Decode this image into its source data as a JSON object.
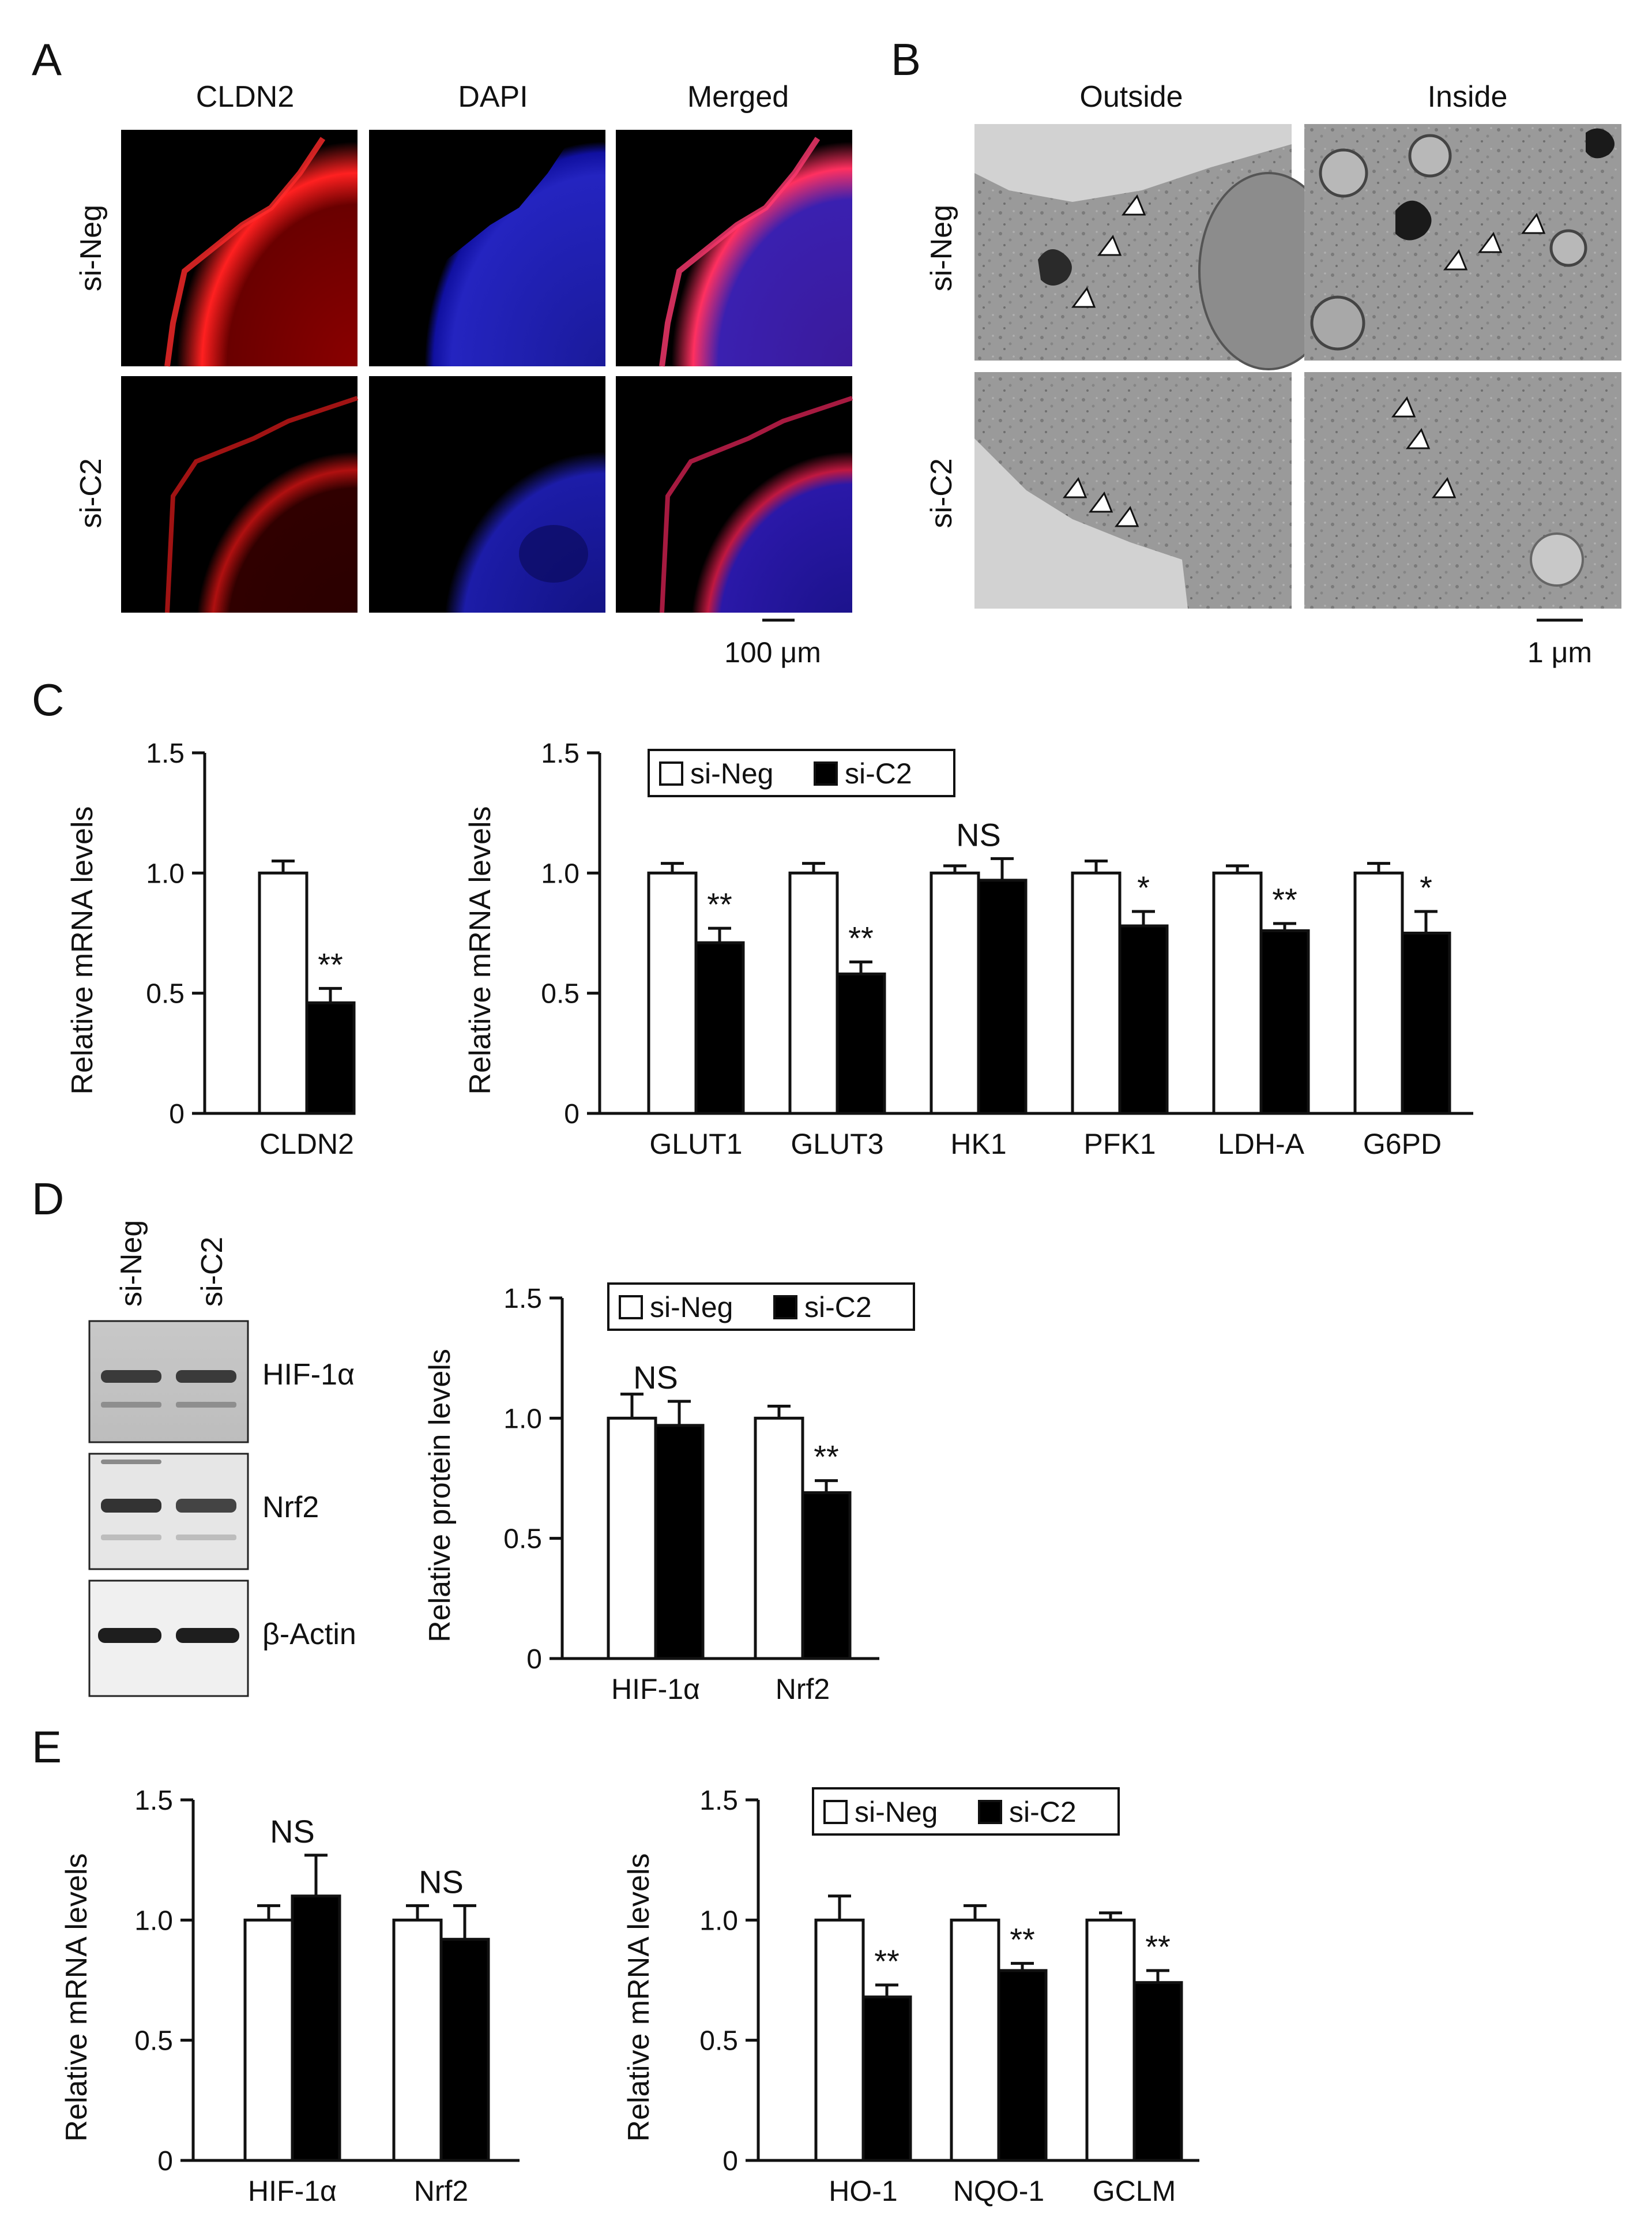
{
  "panels": {
    "A": {
      "letter": "A",
      "columns": [
        "CLDN2",
        "DAPI",
        "Merged"
      ],
      "rows": [
        "si-Neg",
        "si-C2"
      ],
      "scale_bar": "100 μm"
    },
    "B": {
      "letter": "B",
      "columns": [
        "Outside",
        "Inside"
      ],
      "rows": [
        "si-Neg",
        "si-C2"
      ],
      "scale_bar": "1 μm"
    },
    "C": {
      "letter": "C"
    },
    "D": {
      "letter": "D",
      "lanes": [
        "si-Neg",
        "si-C2"
      ],
      "bands": [
        "HIF-1α",
        "Nrf2",
        "β-Actin"
      ]
    },
    "E": {
      "letter": "E"
    }
  },
  "legend": {
    "labels": [
      "si-Neg",
      "si-C2"
    ]
  },
  "colors": {
    "si_neg": "#ffffff",
    "si_c2": "#000000",
    "axis": "#111111"
  },
  "chart_data": [
    {
      "id": "C1",
      "type": "bar",
      "ylabel": "Relative mRNA levels",
      "ylim": [
        0,
        1.5
      ],
      "yticks": [
        "0",
        "0.5",
        "1.0",
        "1.5"
      ],
      "categories": [
        "CLDN2"
      ],
      "series": [
        {
          "name": "si-Neg",
          "values": [
            1.0
          ],
          "errors": [
            0.05
          ]
        },
        {
          "name": "si-C2",
          "values": [
            0.46
          ],
          "errors": [
            0.06
          ]
        }
      ],
      "significance": [
        "**"
      ],
      "legend": false
    },
    {
      "id": "C2",
      "type": "bar",
      "ylabel": "Relative mRNA levels",
      "ylim": [
        0,
        1.5
      ],
      "yticks": [
        "0",
        "0.5",
        "1.0",
        "1.5"
      ],
      "categories": [
        "GLUT1",
        "GLUT3",
        "HK1",
        "PFK1",
        "LDH-A",
        "G6PD"
      ],
      "series": [
        {
          "name": "si-Neg",
          "values": [
            1.0,
            1.0,
            1.0,
            1.0,
            1.0,
            1.0
          ],
          "errors": [
            0.04,
            0.04,
            0.03,
            0.05,
            0.03,
            0.04
          ]
        },
        {
          "name": "si-C2",
          "values": [
            0.71,
            0.58,
            0.97,
            0.78,
            0.76,
            0.75
          ],
          "errors": [
            0.06,
            0.05,
            0.09,
            0.06,
            0.03,
            0.09
          ]
        }
      ],
      "significance": [
        "**",
        "**",
        "NS",
        "*",
        "**",
        "*"
      ],
      "legend": true,
      "legend_position": "top-left"
    },
    {
      "id": "D1",
      "type": "bar",
      "ylabel": "Relative protein levels",
      "ylim": [
        0,
        1.5
      ],
      "yticks": [
        "0",
        "0.5",
        "1.0",
        "1.5"
      ],
      "categories": [
        "HIF-1α",
        "Nrf2"
      ],
      "series": [
        {
          "name": "si-Neg",
          "values": [
            1.0,
            1.0
          ],
          "errors": [
            0.1,
            0.05
          ]
        },
        {
          "name": "si-C2",
          "values": [
            0.97,
            0.69
          ],
          "errors": [
            0.1,
            0.05
          ]
        }
      ],
      "significance": [
        "NS",
        "**"
      ],
      "legend": true,
      "legend_position": "top-left"
    },
    {
      "id": "E1",
      "type": "bar",
      "ylabel": "Relative mRNA levels",
      "ylim": [
        0,
        1.5
      ],
      "yticks": [
        "0",
        "0.5",
        "1.0",
        "1.5"
      ],
      "categories": [
        "HIF-1α",
        "Nrf2"
      ],
      "series": [
        {
          "name": "si-Neg",
          "values": [
            1.0,
            1.0
          ],
          "errors": [
            0.06,
            0.06
          ]
        },
        {
          "name": "si-C2",
          "values": [
            1.1,
            0.92
          ],
          "errors": [
            0.17,
            0.14
          ]
        }
      ],
      "significance": [
        "NS",
        "NS"
      ],
      "legend": false
    },
    {
      "id": "E2",
      "type": "bar",
      "ylabel": "Relative mRNA levels",
      "ylim": [
        0,
        1.5
      ],
      "yticks": [
        "0",
        "0.5",
        "1.0",
        "1.5"
      ],
      "categories": [
        "HO-1",
        "NQO-1",
        "GCLM"
      ],
      "series": [
        {
          "name": "si-Neg",
          "values": [
            1.0,
            1.0,
            1.0
          ],
          "errors": [
            0.1,
            0.06,
            0.03
          ]
        },
        {
          "name": "si-C2",
          "values": [
            0.68,
            0.79,
            0.74
          ],
          "errors": [
            0.05,
            0.03,
            0.05
          ]
        }
      ],
      "significance": [
        "**",
        "**",
        "**"
      ],
      "legend": true,
      "legend_position": "top-left"
    }
  ]
}
